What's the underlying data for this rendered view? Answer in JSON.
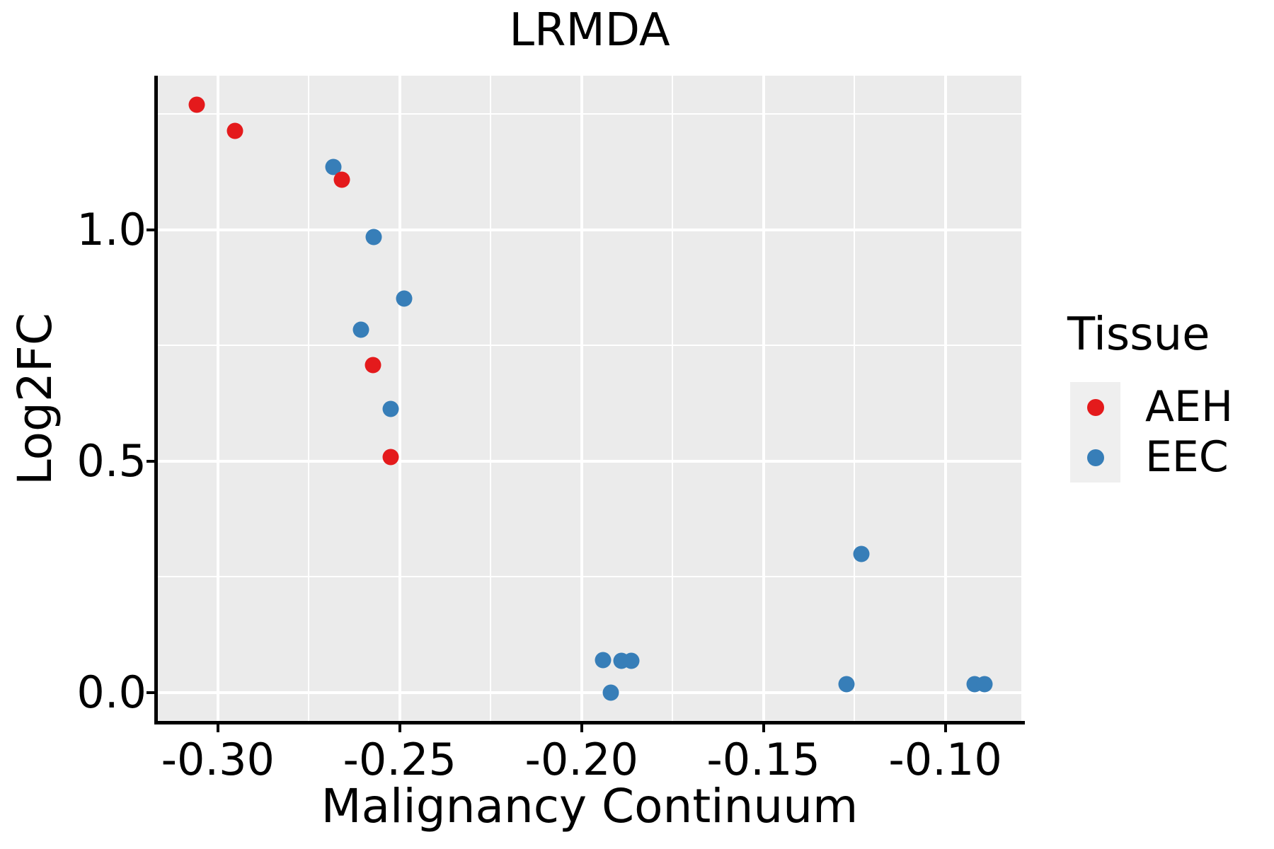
{
  "title": "LRMDA",
  "x_axis": {
    "title": "Malignancy Continuum",
    "tick_labels": [
      "-0.30",
      "-0.25",
      "-0.20",
      "-0.15",
      "-0.10"
    ],
    "tick_values": [
      -0.3,
      -0.25,
      -0.2,
      -0.15,
      -0.1
    ],
    "minor_tick_values": [
      -0.275,
      -0.225,
      -0.175,
      -0.125
    ]
  },
  "y_axis": {
    "title": "Log2FC",
    "tick_labels": [
      "0.0",
      "0.5",
      "1.0"
    ],
    "tick_values": [
      0.0,
      0.5,
      1.0
    ],
    "minor_tick_values": [
      0.25,
      0.75,
      1.25
    ]
  },
  "legend": {
    "title": "Tissue",
    "entries": [
      {
        "label": "AEH",
        "color": "#E41A1C"
      },
      {
        "label": "EEC",
        "color": "#377EB8"
      }
    ]
  },
  "colors": {
    "panel_background": "#EBEBEB",
    "grid": "#FFFFFF",
    "axis": "#000000",
    "text": "#000000",
    "legend_key_background": "#EFEFEF",
    "aeh": "#E41A1C",
    "eec": "#377EB8"
  },
  "chart_data": {
    "type": "scatter",
    "title": "LRMDA",
    "xlabel": "Malignancy Continuum",
    "ylabel": "Log2FC",
    "xlim": [
      -0.3165,
      -0.0791
    ],
    "ylim": [
      -0.0612,
      1.3333
    ],
    "grid": true,
    "legend_position": "right",
    "series": [
      {
        "name": "AEH",
        "color": "#E41A1C",
        "points": [
          [
            -0.3058,
            1.2706
          ],
          [
            -0.2953,
            1.2141
          ],
          [
            -0.2659,
            1.1086
          ],
          [
            -0.2574,
            0.708
          ],
          [
            -0.2525,
            0.5092
          ]
        ]
      },
      {
        "name": "EEC",
        "color": "#377EB8",
        "points": [
          [
            -0.2683,
            1.1361
          ],
          [
            -0.2572,
            0.9847
          ],
          [
            -0.2488,
            0.8517
          ],
          [
            -0.2607,
            0.7844
          ],
          [
            -0.2525,
            0.6132
          ],
          [
            -0.1231,
            0.2997
          ],
          [
            -0.1942,
            0.0703
          ],
          [
            -0.1891,
            0.0688
          ],
          [
            -0.1864,
            0.0688
          ],
          [
            -0.192,
            0.0
          ],
          [
            -0.1272,
            0.0183
          ],
          [
            -0.092,
            0.0183
          ],
          [
            -0.0893,
            0.0183
          ]
        ]
      }
    ]
  }
}
